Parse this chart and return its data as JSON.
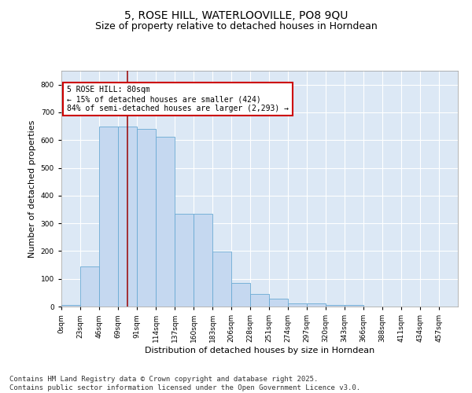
{
  "title": "5, ROSE HILL, WATERLOOVILLE, PO8 9QU",
  "subtitle": "Size of property relative to detached houses in Horndean",
  "xlabel": "Distribution of detached houses by size in Horndean",
  "ylabel": "Number of detached properties",
  "bar_color": "#c5d8f0",
  "bar_edge_color": "#6aaad4",
  "background_color": "#dce8f5",
  "grid_color": "#ffffff",
  "categories": [
    "0sqm",
    "23sqm",
    "46sqm",
    "69sqm",
    "91sqm",
    "114sqm",
    "137sqm",
    "160sqm",
    "183sqm",
    "206sqm",
    "228sqm",
    "251sqm",
    "274sqm",
    "297sqm",
    "320sqm",
    "343sqm",
    "366sqm",
    "388sqm",
    "411sqm",
    "434sqm",
    "457sqm"
  ],
  "values": [
    5,
    145,
    650,
    648,
    640,
    612,
    335,
    335,
    198,
    85,
    46,
    28,
    10,
    10,
    5,
    5,
    0,
    0,
    0,
    0,
    0
  ],
  "ylim": [
    0,
    850
  ],
  "yticks": [
    0,
    100,
    200,
    300,
    400,
    500,
    600,
    700,
    800
  ],
  "vline_x": 3.5,
  "vline_color": "#990000",
  "annotation_text": "5 ROSE HILL: 80sqm\n← 15% of detached houses are smaller (424)\n84% of semi-detached houses are larger (2,293) →",
  "annotation_box_color": "#ffffff",
  "annotation_box_edge": "#cc0000",
  "footer_line1": "Contains HM Land Registry data © Crown copyright and database right 2025.",
  "footer_line2": "Contains public sector information licensed under the Open Government Licence v3.0.",
  "title_fontsize": 10,
  "subtitle_fontsize": 9,
  "tick_fontsize": 6.5,
  "label_fontsize": 8,
  "footer_fontsize": 6.5,
  "annot_fontsize": 7
}
